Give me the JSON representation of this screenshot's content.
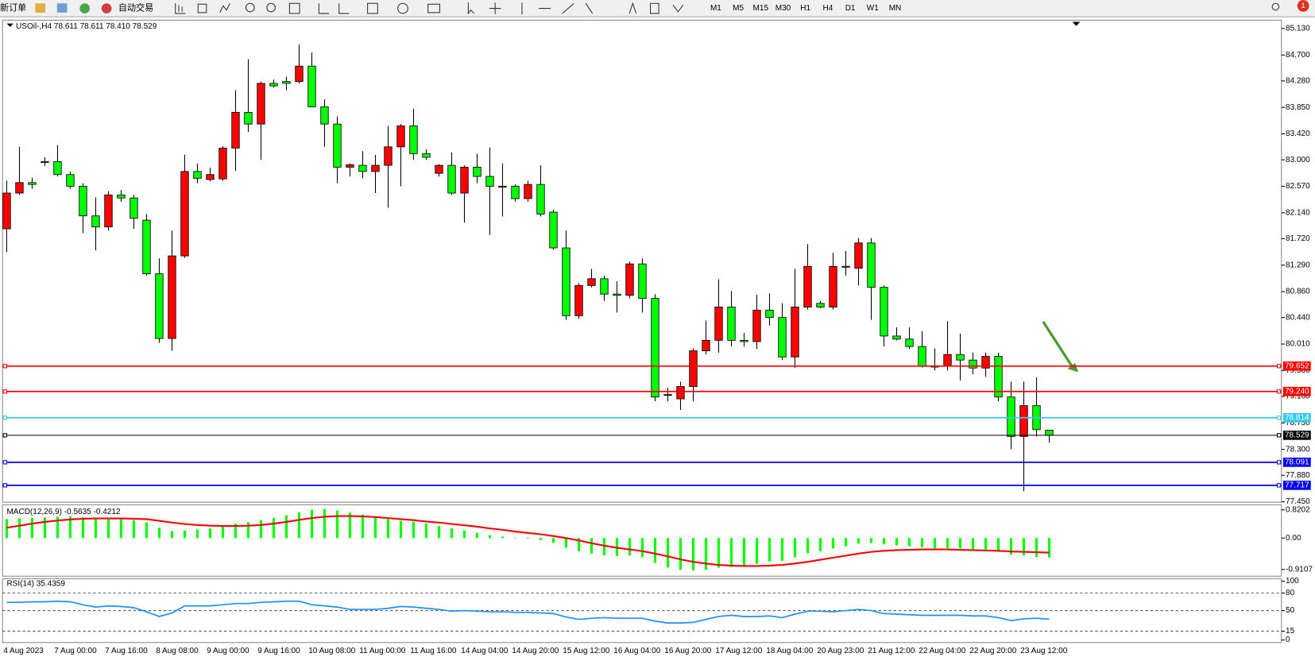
{
  "toolbar": {
    "new_order": "新订单",
    "auto_trading": "自动交易",
    "timeframes": [
      "M1",
      "M5",
      "M15",
      "M30",
      "H1",
      "H4",
      "D1",
      "W1",
      "MN"
    ],
    "notifications": "1"
  },
  "chart_data": [
    {
      "type": "candlestick",
      "header": {
        "symbol": "USOil-,H4",
        "values": [
          "78.611",
          "78.611",
          "78.410",
          "78.529"
        ]
      },
      "up_color": "#ff0000",
      "down_color": "#00ff00",
      "grid": false,
      "categories": [
        "4 Aug 2023",
        null,
        null,
        null,
        "7 Aug 00:00",
        null,
        null,
        null,
        "7 Aug 16:00",
        null,
        null,
        null,
        "8 Aug 08:00",
        null,
        null,
        null,
        "9 Aug 00:00",
        null,
        null,
        null,
        "9 Aug 16:00",
        null,
        null,
        null,
        "10 Aug 08:00",
        null,
        null,
        null,
        "11 Aug 00:00",
        null,
        null,
        null,
        "11 Aug 16:00",
        null,
        null,
        null,
        "14 Aug 04:00",
        null,
        null,
        null,
        "14 Aug 20:00",
        null,
        null,
        null,
        "15 Aug 12:00",
        null,
        null,
        null,
        "16 Aug 04:00",
        null,
        null,
        null,
        "16 Aug 20:00",
        null,
        null,
        null,
        "17 Aug 12:00",
        null,
        null,
        null,
        "18 Aug 04:00",
        null,
        null,
        null,
        "20 Aug 23:00",
        null,
        null,
        null,
        "21 Aug 12:00",
        null,
        null,
        null,
        "22 Aug 04:00",
        null,
        null,
        null,
        "22 Aug 20:00",
        null,
        null,
        null,
        "23 Aug 12:00",
        null,
        null
      ],
      "ohlc": [
        [
          81.88,
          82.66,
          81.5,
          82.46
        ],
        [
          82.46,
          83.21,
          82.43,
          82.63
        ],
        [
          82.63,
          82.71,
          82.53,
          82.6
        ],
        [
          82.97,
          83.04,
          82.9,
          82.96
        ],
        [
          82.97,
          83.24,
          82.73,
          82.76
        ],
        [
          82.76,
          82.81,
          82.53,
          82.57
        ],
        [
          82.57,
          82.62,
          81.81,
          82.09
        ],
        [
          82.09,
          82.39,
          81.53,
          81.91
        ],
        [
          81.91,
          82.49,
          81.85,
          82.43
        ],
        [
          82.43,
          82.51,
          82.32,
          82.38
        ],
        [
          82.38,
          82.43,
          81.88,
          82.05
        ],
        [
          82.02,
          82.12,
          81.12,
          81.15
        ],
        [
          81.15,
          81.4,
          80.03,
          80.1
        ],
        [
          80.1,
          81.85,
          79.9,
          81.44
        ],
        [
          81.44,
          83.08,
          81.41,
          82.81
        ],
        [
          82.81,
          82.94,
          82.62,
          82.7
        ],
        [
          82.68,
          82.87,
          82.65,
          82.76
        ],
        [
          82.69,
          83.22,
          82.66,
          83.19
        ],
        [
          83.19,
          84.13,
          82.82,
          83.77
        ],
        [
          83.77,
          84.63,
          83.45,
          83.58
        ],
        [
          83.58,
          84.27,
          83.0,
          84.24
        ],
        [
          84.24,
          84.3,
          84.17,
          84.2
        ],
        [
          84.27,
          84.35,
          84.13,
          84.24
        ],
        [
          84.27,
          84.87,
          84.24,
          84.52
        ],
        [
          84.52,
          84.74,
          83.86,
          83.86
        ],
        [
          83.86,
          83.98,
          83.21,
          83.58
        ],
        [
          83.58,
          83.7,
          82.62,
          82.88
        ],
        [
          82.88,
          82.94,
          82.73,
          82.92
        ],
        [
          82.91,
          83.14,
          82.7,
          82.81
        ],
        [
          82.81,
          83.08,
          82.46,
          82.91
        ],
        [
          82.91,
          83.55,
          82.22,
          83.21
        ],
        [
          83.21,
          83.58,
          82.57,
          83.55
        ],
        [
          83.55,
          83.83,
          83.0,
          83.1
        ],
        [
          83.1,
          83.17,
          83.0,
          83.04
        ],
        [
          82.78,
          82.93,
          82.73,
          82.91
        ],
        [
          82.91,
          83.12,
          82.43,
          82.46
        ],
        [
          82.46,
          82.91,
          81.98,
          82.88
        ],
        [
          82.88,
          83.1,
          82.62,
          82.73
        ],
        [
          82.73,
          83.2,
          81.78,
          82.57
        ],
        [
          82.57,
          82.94,
          82.08,
          82.57
        ],
        [
          82.57,
          82.6,
          82.32,
          82.37
        ],
        [
          82.37,
          82.66,
          82.32,
          82.6
        ],
        [
          82.6,
          82.91,
          82.08,
          82.12
        ],
        [
          82.15,
          82.19,
          81.54,
          81.57
        ],
        [
          81.57,
          81.85,
          80.4,
          80.47
        ],
        [
          80.47,
          81.0,
          80.42,
          80.96
        ],
        [
          80.96,
          81.23,
          80.93,
          81.07
        ],
        [
          81.07,
          81.12,
          80.71,
          80.82
        ],
        [
          80.82,
          81.03,
          80.52,
          80.8
        ],
        [
          80.8,
          81.35,
          80.75,
          81.31
        ],
        [
          81.31,
          81.4,
          80.52,
          80.75
        ],
        [
          80.75,
          80.82,
          79.08,
          79.15
        ],
        [
          79.19,
          79.3,
          79.08,
          79.19
        ],
        [
          79.12,
          79.4,
          78.94,
          79.32
        ],
        [
          79.32,
          79.94,
          79.08,
          79.9
        ],
        [
          79.9,
          80.39,
          79.84,
          80.07
        ],
        [
          80.07,
          81.06,
          79.87,
          80.61
        ],
        [
          80.61,
          80.87,
          79.97,
          80.07
        ],
        [
          80.07,
          80.19,
          79.97,
          80.05
        ],
        [
          80.05,
          80.81,
          79.93,
          80.56
        ],
        [
          80.56,
          80.83,
          80.31,
          80.44
        ],
        [
          80.44,
          80.67,
          79.75,
          79.8
        ],
        [
          79.8,
          81.23,
          79.62,
          80.61
        ],
        [
          80.61,
          81.63,
          80.57,
          81.27
        ],
        [
          80.67,
          80.71,
          80.59,
          80.61
        ],
        [
          80.61,
          81.49,
          80.57,
          81.27
        ],
        [
          81.27,
          81.52,
          81.12,
          81.27
        ],
        [
          81.24,
          81.73,
          80.96,
          81.65
        ],
        [
          81.65,
          81.73,
          80.4,
          80.93
        ],
        [
          80.93,
          80.96,
          79.97,
          80.14
        ],
        [
          80.14,
          80.28,
          80.07,
          80.09
        ],
        [
          80.09,
          80.28,
          79.93,
          79.97
        ],
        [
          79.97,
          80.22,
          79.63,
          79.65
        ],
        [
          79.65,
          79.94,
          79.58,
          79.65
        ],
        [
          79.65,
          80.38,
          79.58,
          79.84
        ],
        [
          79.84,
          80.18,
          79.42,
          79.75
        ],
        [
          79.75,
          79.87,
          79.52,
          79.62
        ],
        [
          79.62,
          79.87,
          79.48,
          79.81
        ],
        [
          79.81,
          79.87,
          79.08,
          79.15
        ],
        [
          79.15,
          79.4,
          78.3,
          78.51
        ],
        [
          78.51,
          79.4,
          77.62,
          79.01
        ],
        [
          79.01,
          79.47,
          78.51,
          78.62
        ],
        [
          78.611,
          78.611,
          78.41,
          78.529
        ]
      ],
      "ylim": [
        77.442,
        85.266
      ],
      "yticks": [
        {
          "value": 85.13,
          "label": "85.130"
        },
        {
          "value": 84.7,
          "label": "84.700"
        },
        {
          "value": 84.28,
          "label": "84.280"
        },
        {
          "value": 83.85,
          "label": "83.850"
        },
        {
          "value": 83.42,
          "label": "83.420"
        },
        {
          "value": 83.0,
          "label": "83.000"
        },
        {
          "value": 82.57,
          "label": "82.570"
        },
        {
          "value": 82.14,
          "label": "82.140"
        },
        {
          "value": 81.72,
          "label": "81.720"
        },
        {
          "value": 81.29,
          "label": "81.290"
        },
        {
          "value": 80.86,
          "label": "80.860"
        },
        {
          "value": 80.44,
          "label": "80.440"
        },
        {
          "value": 80.01,
          "label": "80.010"
        },
        {
          "value": 79.58,
          "label": "79.580"
        },
        {
          "value": 79.16,
          "label": "79.160"
        },
        {
          "value": 78.73,
          "label": "78.730"
        },
        {
          "value": 78.3,
          "label": "78.300"
        },
        {
          "value": 77.88,
          "label": "77.880"
        },
        {
          "value": 77.45,
          "label": "77.450"
        }
      ],
      "levels": [
        {
          "value": 79.652,
          "label": "79.652",
          "color": "#ff0000"
        },
        {
          "value": 79.24,
          "label": "79.240",
          "color": "#ff0000"
        },
        {
          "value": 78.814,
          "label": "78.814",
          "color": "#33ccee"
        },
        {
          "value": 78.529,
          "label": "78.529",
          "color": "#000000"
        },
        {
          "value": 78.091,
          "label": "78.091",
          "color": "#0000ff"
        },
        {
          "value": 77.717,
          "label": "77.717",
          "color": "#0000ff"
        }
      ]
    },
    {
      "type": "macd",
      "ylim": [
        -1.106,
        0.9665
      ],
      "yticks": [
        0.8202,
        {
          "value": 0,
          "label": "0.00"
        },
        -0.9107
      ],
      "series": [
        {
          "name": "MACD(12,26,9)",
          "color": "#00ff00",
          "values": [
            0.55,
            0.57,
            0.58,
            0.6,
            0.62,
            0.63,
            0.6,
            0.56,
            0.56,
            0.55,
            0.52,
            0.45,
            0.3,
            0.2,
            0.22,
            0.25,
            0.28,
            0.35,
            0.42,
            0.46,
            0.52,
            0.58,
            0.66,
            0.75,
            0.82,
            0.84,
            0.8,
            0.74,
            0.68,
            0.62,
            0.55,
            0.5,
            0.47,
            0.42,
            0.35,
            0.28,
            0.22,
            0.15,
            0.08,
            0.04,
            0.01,
            -0.02,
            -0.06,
            -0.14,
            -0.28,
            -0.38,
            -0.45,
            -0.5,
            -0.52,
            -0.5,
            -0.55,
            -0.72,
            -0.85,
            -0.92,
            -0.94,
            -0.92,
            -0.86,
            -0.84,
            -0.8,
            -0.75,
            -0.68,
            -0.66,
            -0.56,
            -0.44,
            -0.38,
            -0.3,
            -0.24,
            -0.16,
            -0.14,
            -0.18,
            -0.21,
            -0.24,
            -0.27,
            -0.3,
            -0.29,
            -0.3,
            -0.32,
            -0.33,
            -0.38,
            -0.48,
            -0.5,
            -0.55,
            -0.5635
          ]
        },
        {
          "color": "#ff0000",
          "values": [
            0.3,
            0.36,
            0.42,
            0.47,
            0.51,
            0.54,
            0.56,
            0.57,
            0.57,
            0.57,
            0.56,
            0.55,
            0.5,
            0.45,
            0.41,
            0.38,
            0.36,
            0.35,
            0.35,
            0.36,
            0.38,
            0.42,
            0.47,
            0.53,
            0.58,
            0.62,
            0.64,
            0.64,
            0.63,
            0.61,
            0.58,
            0.55,
            0.52,
            0.48,
            0.45,
            0.41,
            0.37,
            0.33,
            0.28,
            0.24,
            0.19,
            0.15,
            0.11,
            0.06,
            0.0,
            -0.07,
            -0.15,
            -0.22,
            -0.28,
            -0.33,
            -0.38,
            -0.45,
            -0.53,
            -0.62,
            -0.69,
            -0.74,
            -0.78,
            -0.8,
            -0.81,
            -0.81,
            -0.8,
            -0.78,
            -0.74,
            -0.69,
            -0.63,
            -0.57,
            -0.51,
            -0.45,
            -0.4,
            -0.37,
            -0.35,
            -0.34,
            -0.33,
            -0.33,
            -0.33,
            -0.34,
            -0.35,
            -0.36,
            -0.37,
            -0.39,
            -0.4,
            -0.41,
            -0.4212
          ]
        }
      ]
    },
    {
      "type": "line",
      "ylim": [
        -4.3,
        104.3
      ],
      "yticks": [
        100,
        80,
        50,
        15,
        0
      ],
      "series": [
        {
          "name": "RSI(14)",
          "color": "#1e90ff",
          "values": [
            64,
            64,
            65,
            65,
            66,
            65,
            60,
            56,
            58,
            57,
            55,
            48,
            40,
            46,
            58,
            58,
            58,
            60,
            62,
            62,
            64,
            65,
            66,
            66,
            60,
            58,
            56,
            52,
            52,
            52,
            54,
            57,
            56,
            54,
            52,
            49,
            50,
            49,
            48,
            48,
            47,
            47,
            46,
            45,
            39,
            35,
            37,
            38,
            37,
            37,
            37,
            32,
            29,
            29,
            30,
            35,
            40,
            42,
            40,
            40,
            41,
            38,
            44,
            49,
            49,
            48,
            50,
            52,
            50,
            45,
            44,
            43,
            42,
            42,
            42,
            42,
            41,
            41,
            38,
            33,
            36,
            37,
            35.4359
          ]
        }
      ]
    }
  ]
}
